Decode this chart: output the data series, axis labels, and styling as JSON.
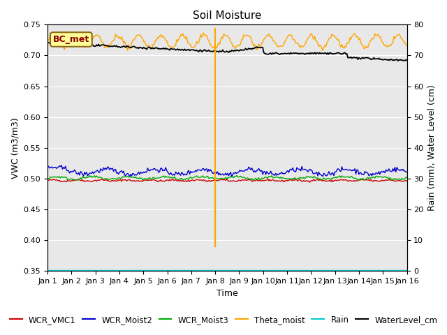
{
  "title": "Soil Moisture",
  "ylabel_left": "VWC (m3/m3)",
  "ylabel_right": "Rain (mm), Water Level (cm)",
  "xlabel": "Time",
  "ylim_left": [
    0.35,
    0.75
  ],
  "ylim_right": [
    0,
    80
  ],
  "xlim": [
    0,
    15
  ],
  "xtick_labels": [
    "Jan 1",
    "Jan 2",
    "Jan 3",
    "Jan 4",
    "Jan 5",
    "Jan 6",
    "Jan 7",
    "Jan 8",
    "Jan 9",
    "Jan 10",
    "Jan 11",
    "Jan 12",
    "Jan 13",
    "Jan 14",
    "Jan 15",
    "Jan 16"
  ],
  "background_color": "#e8e8e8",
  "fig_background": "#ffffff",
  "bc_met_label": "BC_met",
  "bc_met_box_color": "#ffff99",
  "bc_met_text_color": "#8b0000",
  "vline_x": 7.0,
  "legend_labels": [
    "WCR_VMC1",
    "WCR_Moist2",
    "WCR_Moist3",
    "Theta_moist",
    "Rain",
    "WaterLevel_cm"
  ],
  "legend_colors": [
    "#cc0000",
    "#0000cc",
    "#00aa00",
    "#ffa500",
    "#00cccc",
    "#000000"
  ],
  "title_fontsize": 11,
  "axis_label_fontsize": 9,
  "tick_fontsize": 8,
  "legend_fontsize": 8.5
}
